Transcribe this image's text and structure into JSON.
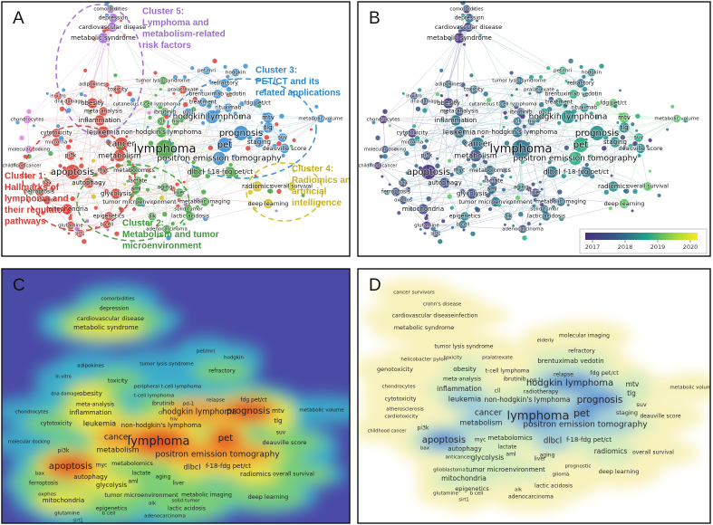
{
  "panels": [
    {
      "letter": "A",
      "terms": [
        "comorbidities",
        "depression",
        "cardiovascular disease",
        "metabolic syndrome",
        "pet/mri",
        "hodgkin",
        "tumor lysis syndrome",
        "adipokines",
        "toxicity",
        "pralatrexate",
        "refractory",
        "in vitro",
        "dna damage",
        "obesity",
        "brentuximab vedotin",
        "treatment",
        "rituximab",
        "fdg pet/ct",
        "cutaneous t-cell lymphoma",
        "meta-analysis",
        "ibrutinib",
        "pd-1",
        "hodgkin lymphoma",
        "chondrocytes",
        "inflammation",
        "cll",
        "hiv",
        "mtv",
        "metabolic volume",
        "prognosis",
        "cytotoxicity",
        "leukemia",
        "non-hodgkin's lymphoma",
        "tlg",
        "microrna",
        "suv",
        "staging",
        "pet",
        "cancer",
        "lymphoma",
        "deauville score",
        "molecular docking",
        "pi3k",
        "metabolism",
        "positron emission tomography",
        "childhood cancer",
        "apoptosis",
        "myc",
        "metabolomics",
        "dlbcl",
        "f-18-fdg pet/ct",
        "bax",
        "autophagy",
        "lactate",
        "aging",
        "aml",
        "radiomics",
        "overall survival",
        "ferroptosis",
        "glycolysis",
        "liver",
        "oxphos",
        "tumor microenvironment",
        "metabolic imaging",
        "deep learning",
        "mitochondria",
        "solid tumor",
        "epigenetics",
        "alk",
        "lactic acidosis",
        "glutamine",
        "b cell",
        "sirt1",
        "adenocarcinoma"
      ],
      "clusters": [
        {
          "lines": [
            "Cluster 5:",
            "Lymphoma and",
            "metabolism-related",
            "risk factors"
          ]
        },
        {
          "lines": [
            "Cluster 3:",
            "PET/CT and its",
            "related applications"
          ]
        },
        {
          "lines": [
            "Cluster 1:",
            "Hallmarks of",
            "lymphoma and",
            "their regulatory",
            "pathways"
          ]
        },
        {
          "lines": [
            "Cluster 4:",
            "Radiomics and",
            "artificial",
            "intelligence"
          ]
        },
        {
          "lines": [
            "Cluster 2:",
            "Metabolism and tumor",
            "microenvironment"
          ]
        }
      ]
    },
    {
      "letter": "B",
      "terms": [
        "comorbidities",
        "depression",
        "cardiovascular disease",
        "metabolic syndrome",
        "pet/mri",
        "hodgkin",
        "tumor lysis syndrome",
        "adipokines",
        "toxicity",
        "pralatrexate",
        "refractory",
        "in vitro",
        "dna damage",
        "obesity",
        "brentuximab vedotin",
        "treatment",
        "rituximab",
        "fdg pet/ct",
        "cutaneous t-cell lymphoma",
        "meta-analysis",
        "ibrutinib",
        "pd-1",
        "hodgkin lymphoma",
        "chondrocytes",
        "inflammation",
        "cll",
        "hiv",
        "mtv",
        "metabolic volume",
        "prognosis",
        "cytotoxicity",
        "leukemia",
        "non-hodgkin's lymphoma",
        "tlg",
        "microrna",
        "suv",
        "staging",
        "pet",
        "cancer",
        "lymphoma",
        "deauville score",
        "molecular docking",
        "pi3k",
        "metabolism",
        "positron emission tomography",
        "childhood cancer",
        "apoptosis",
        "myc",
        "metabolomics",
        "dlbcl",
        "f-18-fdg pet/ct",
        "bax",
        "autophagy",
        "lactate",
        "aging",
        "aml",
        "radiomics",
        "overall survival",
        "ferroptosis",
        "glycolysis",
        "liver",
        "oxphos",
        "tumor microenvironment",
        "metabolic imaging",
        "deep learning",
        "mitochondria",
        "solid tumor",
        "epigenetics",
        "alk",
        "lactic acidosis",
        "glutamine",
        "b cell",
        "sirt1",
        "adenocarcinoma"
      ],
      "colorbar": {
        "ticks": [
          2017,
          2018,
          2019,
          2020
        ]
      }
    },
    {
      "letter": "C",
      "terms": [
        "comorbidities",
        "depression",
        "cardiovascular disease",
        "metabolic syndrome",
        "pet/mri",
        "hodgkin",
        "adipokines",
        "tumor lysis syndrome",
        "in vitro",
        "toxicity",
        "refractory",
        "dna damage",
        "obesity",
        "peripheral t-cell lymphoma",
        "t-cell lymphoma",
        "relapse",
        "fdg pet/ct",
        "meta-analysis",
        "ibrutinib",
        "pd-1",
        "hodgkin lymphoma",
        "prognosis",
        "mtv",
        "tlg",
        "chondrocytes",
        "inflammation",
        "cll",
        "metabolic volume",
        "cytotoxicity",
        "leukemia",
        "hiv",
        "non-hodgkin's lymphoma",
        "pet",
        "suv",
        "molecular docking",
        "cancer",
        "lymphoma",
        "deauville score",
        "pi3k",
        "metabolism",
        "positron emission tomography",
        "apoptosis",
        "myc",
        "metabolomics",
        "dlbcl",
        "f-18-fdg pet/ct",
        "bax",
        "lactate",
        "autophagy",
        "aging",
        "radiomics",
        "overall survival",
        "ferroptosis",
        "aml",
        "glycolysis",
        "liver",
        "oxphos",
        "tumor microenvironment",
        "metabolic imaging",
        "deep learning",
        "mitochondria",
        "alk",
        "solid tumor",
        "epigenetics",
        "lactic acidosis",
        "glutamine",
        "b cell",
        "adenocarcinoma",
        "sirt1"
      ]
    },
    {
      "letter": "D",
      "terms": [
        "cancer survivors",
        "crohn's disease",
        "cardiovascular diseaseinfection",
        "metabolic syndrome",
        "elderly",
        "molecular imaging",
        "refractory",
        "tumor lysis syndrome",
        "helicobacter pylori",
        "pralatrexate",
        "toxicity",
        "brentuximab vedotin",
        "genotoxicity",
        "obesity",
        "t-cell lymphoma",
        "fdg pet/ct",
        "relapse",
        "meta-analysis",
        "ibrutinib",
        "pd-1",
        "hodgkin lymphoma",
        "chondrocytes",
        "inflammation",
        "cll",
        "radiotherapy",
        "mtv",
        "metabolic volume",
        "tlg",
        "cytotoxicity",
        "leukemia",
        "non-hodgkin's lymphoma",
        "prognosis",
        "suv",
        "atherosclerosis",
        "pet",
        "cancer",
        "cardiotoxicity",
        "lymphoma",
        "staging",
        "deauville score",
        "metabolism",
        "positron emission tomography",
        "childhood cancer",
        "pi3k",
        "apoptosis",
        "myc",
        "metabolomics",
        "dlbcl",
        "f-18-fdg pet/ct",
        "bax",
        "autophagy",
        "lactate",
        "aml",
        "aging",
        "radiomics",
        "overall survival",
        "anticancer",
        "glycolysis",
        "liver",
        "prognostic",
        "glioblastoma",
        "tumor microenvironment",
        "deep learning",
        "mitochondria",
        "glioma",
        "epigenetics",
        "alk",
        "lactic acidosis",
        "glutamine",
        "b cell",
        "adenocarcinoma",
        "sirt1"
      ]
    }
  ]
}
